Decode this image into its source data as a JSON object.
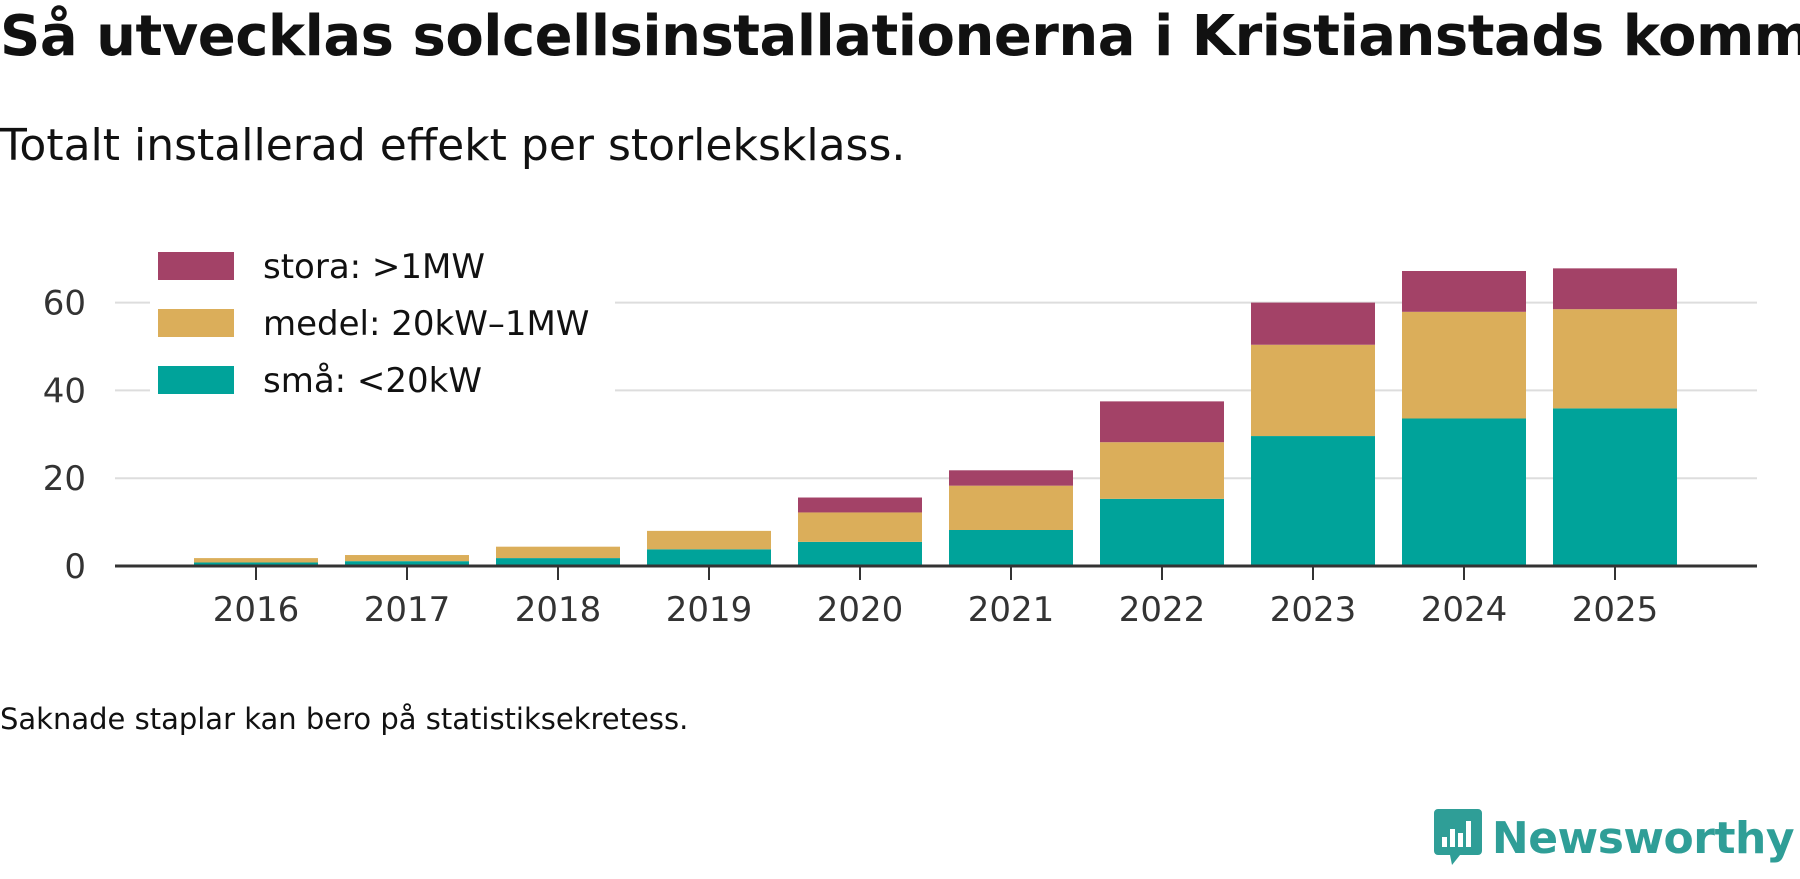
{
  "title": "Så utvecklas solcellsinstallationerna i Kristianstads kommun",
  "subtitle": "Totalt installerad effekt per storleksklass.",
  "note": "Saknade staplar kan bero på statistiksekretess.",
  "brand": {
    "name": "Newsworthy",
    "logo_icon": "bar-chart-speech-bubble-icon"
  },
  "colors": {
    "sma": "#00a39a",
    "medel": "#dbae5a",
    "stora": "#a34267",
    "axis": "#333333",
    "grid": "#dddddd",
    "tick_label": "#333333"
  },
  "chart_data": {
    "type": "bar",
    "stacked": true,
    "title": "Så utvecklas solcellsinstallationerna i Kristianstads kommun",
    "subtitle": "Totalt installerad effekt per storleksklass.",
    "xlabel": "",
    "ylabel": "",
    "categories": [
      "2016",
      "2017",
      "2018",
      "2019",
      "2020",
      "2021",
      "2022",
      "2023",
      "2024",
      "2025"
    ],
    "yticks": [
      0,
      20,
      40,
      60
    ],
    "ylim": [
      0,
      72
    ],
    "grid": true,
    "legend_position": "top-left",
    "series": [
      {
        "name": "små: <20kW",
        "key": "sma",
        "values": [
          0.8,
          1.1,
          1.8,
          3.8,
          5.5,
          8.2,
          15.3,
          29.6,
          33.6,
          35.9
        ]
      },
      {
        "name": "medel: 20kW–1MW",
        "key": "medel",
        "values": [
          1.0,
          1.4,
          2.6,
          4.2,
          6.7,
          10.1,
          12.9,
          20.8,
          24.3,
          22.6
        ]
      },
      {
        "name": "stora: >1MW",
        "key": "stora",
        "values": [
          0.0,
          0.0,
          0.0,
          0.0,
          3.4,
          3.5,
          9.3,
          9.6,
          9.3,
          9.3
        ]
      }
    ]
  }
}
